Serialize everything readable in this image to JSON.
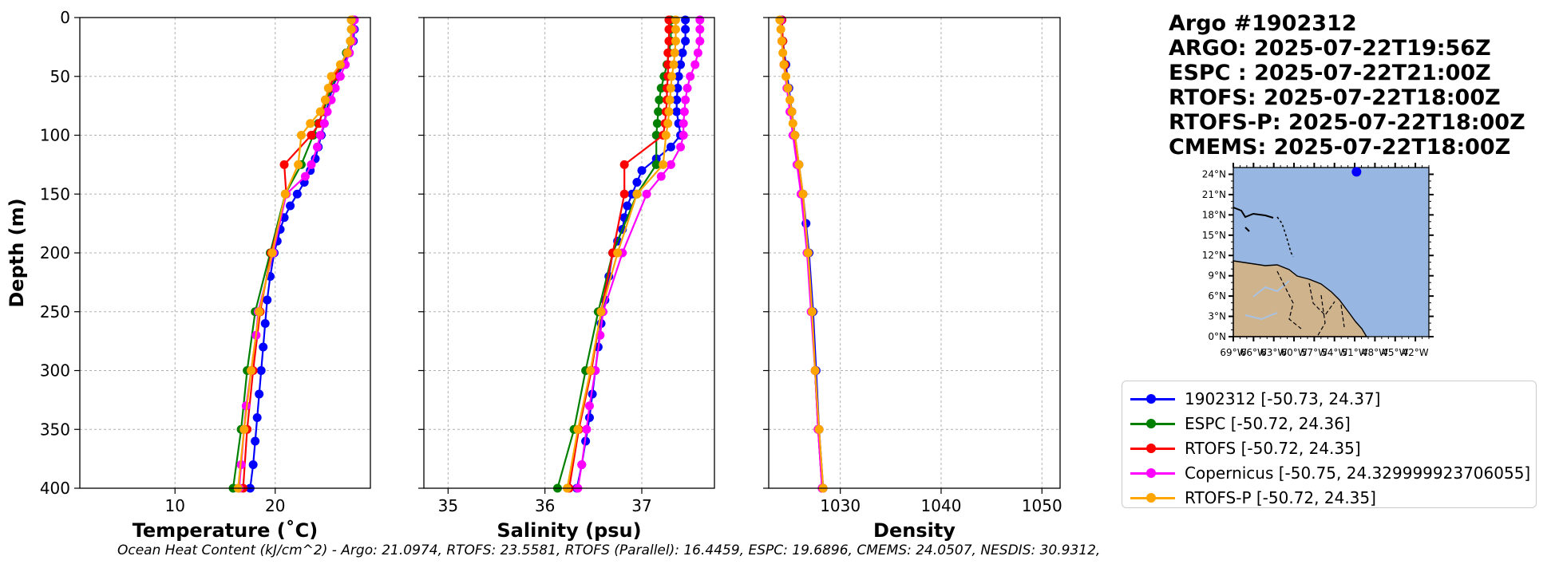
{
  "title_lines": [
    "Argo #1902312",
    "ARGO: 2025-07-22T19:56Z",
    "ESPC : 2025-07-22T21:00Z",
    "RTOFS: 2025-07-22T18:00Z",
    "RTOFS-P: 2025-07-22T18:00Z",
    "CMEMS: 2025-07-22T18:00Z"
  ],
  "footer": "Ocean Heat Content (kJ/cm^2) - Argo: 21.0974,  RTOFS: 23.5581,  RTOFS (Parallel): 16.4459,  ESPC: 19.6896,  CMEMS: 24.0507,  NESDIS: 30.9312,",
  "legend": [
    {
      "label": "1902312 [-50.73, 24.37]",
      "color": "#0000ff"
    },
    {
      "label": "ESPC [-50.72, 24.36]",
      "color": "#008000"
    },
    {
      "label": "RTOFS [-50.72, 24.35]",
      "color": "#ff0000"
    },
    {
      "label": "Copernicus [-50.75, 24.329999923706055]",
      "color": "#ff00ff"
    },
    {
      "label": "RTOFS-P [-50.72, 24.35]",
      "color": "#ffa500"
    }
  ],
  "chart_data": [
    {
      "type": "line",
      "xlabel": "Temperature (˚C)",
      "ylabel": "Depth (m)",
      "xlim": [
        0.5,
        29.5
      ],
      "ylim": [
        400,
        0
      ],
      "xticks": [
        10,
        20
      ],
      "yticks": [
        0,
        50,
        100,
        150,
        200,
        250,
        300,
        350,
        400
      ],
      "grid": true,
      "series": [
        {
          "name": "1902312",
          "color": "#0000ff",
          "depth": [
            2,
            10,
            20,
            30,
            40,
            50,
            60,
            70,
            80,
            90,
            100,
            110,
            120,
            130,
            140,
            150,
            160,
            170,
            180,
            190,
            200,
            220,
            240,
            260,
            280,
            300,
            320,
            340,
            360,
            380,
            400
          ],
          "values": [
            27.9,
            27.9,
            27.8,
            27.4,
            26.8,
            26.2,
            25.7,
            25.4,
            25.1,
            24.9,
            24.6,
            24.3,
            24.0,
            23.5,
            22.9,
            22.2,
            21.5,
            20.9,
            20.5,
            20.2,
            19.9,
            19.5,
            19.2,
            19.0,
            18.8,
            18.6,
            18.4,
            18.2,
            18.0,
            17.8,
            17.5
          ]
        },
        {
          "name": "ESPC",
          "color": "#008000",
          "depth": [
            2,
            10,
            20,
            30,
            40,
            50,
            60,
            70,
            80,
            90,
            100,
            125,
            150,
            200,
            250,
            300,
            350,
            400
          ],
          "values": [
            27.6,
            27.6,
            27.5,
            27.1,
            26.6,
            26.1,
            25.6,
            25.2,
            24.8,
            24.3,
            23.8,
            22.6,
            21.0,
            19.5,
            18.0,
            17.2,
            16.6,
            15.8
          ]
        },
        {
          "name": "RTOFS",
          "color": "#ff0000",
          "depth": [
            2,
            10,
            20,
            30,
            40,
            50,
            60,
            70,
            80,
            90,
            100,
            125,
            150,
            200,
            250,
            300,
            350,
            400
          ],
          "values": [
            27.8,
            27.8,
            27.7,
            27.2,
            26.6,
            25.9,
            25.4,
            25.0,
            24.7,
            24.4,
            23.6,
            20.9,
            21.1,
            19.6,
            18.5,
            17.8,
            17.2,
            16.8
          ]
        },
        {
          "name": "Copernicus",
          "color": "#ff00ff",
          "depth": [
            2,
            10,
            20,
            30,
            40,
            50,
            60,
            70,
            80,
            90,
            100,
            110,
            125,
            135,
            150,
            200,
            250,
            270,
            300,
            330,
            350,
            380,
            400
          ],
          "values": [
            27.9,
            27.8,
            27.7,
            27.4,
            27.0,
            26.5,
            26.0,
            25.6,
            25.2,
            24.9,
            24.5,
            24.2,
            23.6,
            23.0,
            21.1,
            19.8,
            18.3,
            18.1,
            17.6,
            17.1,
            16.9,
            16.6,
            16.4
          ]
        },
        {
          "name": "RTOFS-P",
          "color": "#ffa500",
          "depth": [
            2,
            10,
            20,
            30,
            40,
            50,
            60,
            70,
            80,
            90,
            100,
            125,
            150,
            200,
            250,
            300,
            350,
            400
          ],
          "values": [
            27.6,
            27.6,
            27.5,
            27.2,
            26.5,
            25.6,
            25.3,
            25.0,
            24.5,
            23.5,
            22.6,
            22.3,
            21.0,
            19.7,
            18.4,
            17.6,
            16.9,
            16.3
          ]
        }
      ]
    },
    {
      "type": "line",
      "xlabel": "Salinity (psu)",
      "ylabel": "",
      "xlim": [
        34.75,
        37.75
      ],
      "ylim": [
        400,
        0
      ],
      "xticks": [
        35,
        36,
        37
      ],
      "yticks": [
        0,
        50,
        100,
        150,
        200,
        250,
        300,
        350,
        400
      ],
      "grid": true,
      "series": [
        {
          "name": "1902312",
          "color": "#0000ff",
          "depth": [
            2,
            10,
            20,
            30,
            40,
            50,
            60,
            70,
            80,
            90,
            100,
            110,
            120,
            130,
            140,
            150,
            160,
            170,
            180,
            190,
            200,
            220,
            240,
            260,
            280,
            300,
            320,
            340,
            360,
            380,
            400
          ],
          "values": [
            37.45,
            37.45,
            37.45,
            37.42,
            37.4,
            37.38,
            37.37,
            37.36,
            37.36,
            37.38,
            37.4,
            37.3,
            37.15,
            37.0,
            36.95,
            36.9,
            36.85,
            36.82,
            36.8,
            36.75,
            36.7,
            36.66,
            36.62,
            36.58,
            36.55,
            36.52,
            36.49,
            36.46,
            36.42,
            36.38,
            36.33
          ]
        },
        {
          "name": "ESPC",
          "color": "#008000",
          "depth": [
            2,
            10,
            20,
            30,
            40,
            50,
            60,
            70,
            80,
            90,
            100,
            125,
            150,
            200,
            250,
            300,
            350,
            400
          ],
          "values": [
            37.3,
            37.3,
            37.3,
            37.28,
            37.26,
            37.23,
            37.2,
            37.18,
            37.17,
            37.16,
            37.15,
            37.15,
            36.95,
            36.7,
            36.55,
            36.42,
            36.3,
            36.13
          ]
        },
        {
          "name": "RTOFS",
          "color": "#ff0000",
          "depth": [
            2,
            10,
            20,
            30,
            40,
            50,
            60,
            70,
            80,
            90,
            100,
            125,
            150,
            200,
            250,
            300,
            350,
            400
          ],
          "values": [
            37.28,
            37.28,
            37.28,
            37.27,
            37.27,
            37.27,
            37.26,
            37.26,
            37.25,
            37.24,
            37.22,
            36.82,
            36.82,
            36.7,
            36.58,
            36.48,
            36.35,
            36.25
          ]
        },
        {
          "name": "Copernicus",
          "color": "#ff00ff",
          "depth": [
            2,
            10,
            20,
            30,
            40,
            50,
            60,
            70,
            80,
            90,
            100,
            110,
            125,
            135,
            150,
            200,
            250,
            270,
            300,
            330,
            350,
            380,
            400
          ],
          "values": [
            37.6,
            37.6,
            37.6,
            37.58,
            37.55,
            37.5,
            37.47,
            37.45,
            37.44,
            37.43,
            37.43,
            37.4,
            37.3,
            37.2,
            37.05,
            36.8,
            36.6,
            36.57,
            36.52,
            36.46,
            36.43,
            36.38,
            36.34
          ]
        },
        {
          "name": "RTOFS-P",
          "color": "#ffa500",
          "depth": [
            2,
            10,
            20,
            30,
            40,
            50,
            60,
            70,
            80,
            90,
            100,
            125,
            150,
            200,
            250,
            300,
            350,
            400
          ],
          "values": [
            37.35,
            37.35,
            37.35,
            37.34,
            37.33,
            37.31,
            37.3,
            37.29,
            37.28,
            37.27,
            37.25,
            37.22,
            36.95,
            36.75,
            36.58,
            36.47,
            36.34,
            36.23
          ]
        }
      ]
    },
    {
      "type": "line",
      "xlabel": "Density",
      "ylabel": "",
      "xlim": [
        1022.9,
        1051.8
      ],
      "ylim": [
        400,
        0
      ],
      "xticks": [
        1030,
        1040,
        1050
      ],
      "yticks": [
        0,
        50,
        100,
        150,
        200,
        250,
        300,
        350,
        400
      ],
      "grid": true,
      "series": [
        {
          "name": "1902312",
          "color": "#0000ff",
          "depth": [
            2,
            20,
            40,
            60,
            80,
            100,
            125,
            150,
            175,
            200,
            250,
            300,
            350,
            400
          ],
          "values": [
            1024.2,
            1024.3,
            1024.6,
            1024.9,
            1025.2,
            1025.5,
            1025.9,
            1026.3,
            1026.6,
            1026.9,
            1027.3,
            1027.6,
            1027.9,
            1028.3
          ]
        },
        {
          "name": "ESPC",
          "color": "#008000",
          "depth": [
            2,
            20,
            40,
            60,
            80,
            100,
            125,
            150,
            200,
            250,
            300,
            350,
            400
          ],
          "values": [
            1024.2,
            1024.3,
            1024.5,
            1024.8,
            1025.1,
            1025.4,
            1025.8,
            1026.2,
            1026.8,
            1027.2,
            1027.5,
            1027.8,
            1028.2
          ]
        },
        {
          "name": "RTOFS",
          "color": "#ff0000",
          "depth": [
            2,
            20,
            40,
            60,
            80,
            100,
            125,
            150,
            200,
            250,
            300,
            350,
            400
          ],
          "values": [
            1024.2,
            1024.3,
            1024.5,
            1024.8,
            1025.1,
            1025.4,
            1025.8,
            1026.2,
            1026.8,
            1027.2,
            1027.5,
            1027.8,
            1028.2
          ]
        },
        {
          "name": "Copernicus",
          "color": "#ff00ff",
          "depth": [
            2,
            20,
            40,
            60,
            80,
            100,
            125,
            150,
            200,
            250,
            300,
            350,
            400
          ],
          "values": [
            1024.1,
            1024.2,
            1024.4,
            1024.7,
            1025.0,
            1025.3,
            1025.7,
            1026.1,
            1026.7,
            1027.1,
            1027.5,
            1027.8,
            1028.2
          ]
        },
        {
          "name": "RTOFS-P",
          "color": "#ffa500",
          "depth": [
            2,
            10,
            20,
            30,
            40,
            50,
            60,
            70,
            80,
            90,
            100,
            125,
            150,
            200,
            250,
            300,
            350,
            400
          ],
          "values": [
            1024.0,
            1024.1,
            1024.2,
            1024.3,
            1024.4,
            1024.6,
            1024.8,
            1025.0,
            1025.2,
            1025.3,
            1025.5,
            1025.9,
            1026.3,
            1026.8,
            1027.2,
            1027.5,
            1027.9,
            1028.3
          ]
        }
      ]
    }
  ],
  "inset_map": {
    "lat_labels": [
      "24°N",
      "21°N",
      "18°N",
      "15°N",
      "12°N",
      "9°N",
      "6°N",
      "3°N",
      "0°N"
    ],
    "lon_labels": [
      "69°W",
      "66°W",
      "63°W",
      "60°W",
      "57°W",
      "54°W",
      "51°W",
      "48°W",
      "45°W",
      "42°W"
    ],
    "marker": {
      "lon": -50.73,
      "lat": 24.37
    },
    "lon_range": [
      -69,
      -40
    ],
    "lat_range": [
      0,
      25
    ],
    "ocean_color": "#97b6e1",
    "land_color": "#cfb38d"
  }
}
